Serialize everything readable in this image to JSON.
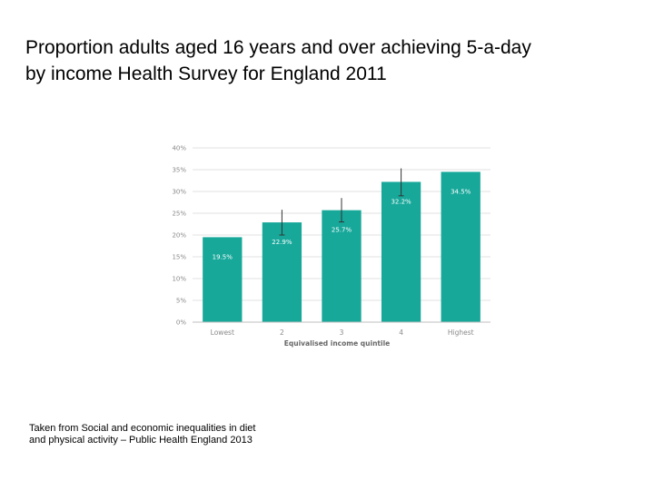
{
  "slide": {
    "title_line1": "Proportion adults aged 16 years and over achieving 5-a-day",
    "title_line2": "by income Health Survey for England 2011",
    "source_line1": "Taken from Social and economic inequalities in diet",
    "source_line2": "and physical activity – Public Health England 2013"
  },
  "chart_data": {
    "type": "bar",
    "title": "",
    "xlabel": "Equivalised income quintile",
    "ylabel": "",
    "categories": [
      "Lowest",
      "2",
      "3",
      "4",
      "Highest"
    ],
    "values": [
      19.5,
      22.9,
      25.7,
      32.2,
      34.5
    ],
    "data_labels": [
      "19.5%",
      "22.9%",
      "25.7%",
      "32.2%",
      "34.5%"
    ],
    "error_upper": [
      null,
      25.8,
      28.5,
      35.3,
      null
    ],
    "error_lower": [
      null,
      20.0,
      23.0,
      29.0,
      null
    ],
    "ylim": [
      0,
      40
    ],
    "yticks": [
      0,
      5,
      10,
      15,
      20,
      25,
      30,
      35,
      40
    ],
    "ytick_labels": [
      "0%",
      "5%",
      "10%",
      "15%",
      "20%",
      "25%",
      "30%",
      "35%",
      "40%"
    ],
    "grid": true,
    "bar_color": "#17a89a",
    "error_bar_color": "#333333",
    "grid_color": "#d9d9d9"
  }
}
